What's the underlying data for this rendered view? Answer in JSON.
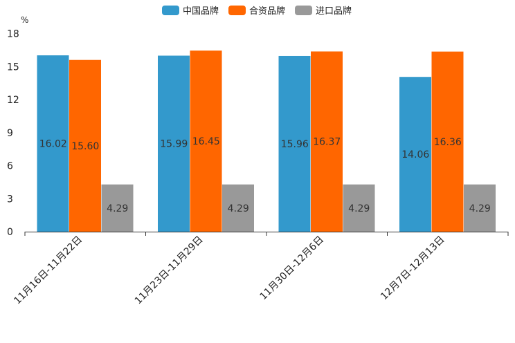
{
  "chart_data": {
    "type": "bar",
    "unit": "%",
    "categories": [
      "11月16日-11月22日",
      "11月23日-11月29日",
      "11月30日-12月6日",
      "12月7日-12月13日"
    ],
    "series": [
      {
        "name": "中国品牌",
        "color": "#3399cc",
        "values": [
          16.02,
          15.99,
          15.96,
          14.06
        ],
        "labels": [
          "16.02",
          "15.99",
          "15.96",
          "14.06"
        ]
      },
      {
        "name": "合资品牌",
        "color": "#ff6600",
        "values": [
          15.6,
          16.45,
          16.37,
          16.36
        ],
        "labels": [
          "15.60",
          "16.45",
          "16.37",
          "16.36"
        ]
      },
      {
        "name": "进口品牌",
        "color": "#999999",
        "values": [
          4.29,
          4.29,
          4.29,
          4.29
        ],
        "labels": [
          "4.29",
          "4.29",
          "4.29",
          "4.29"
        ]
      }
    ],
    "yticks": [
      0,
      3,
      6,
      9,
      12,
      15,
      18
    ],
    "ylim": [
      0,
      18
    ],
    "legend_position": "top-center"
  }
}
